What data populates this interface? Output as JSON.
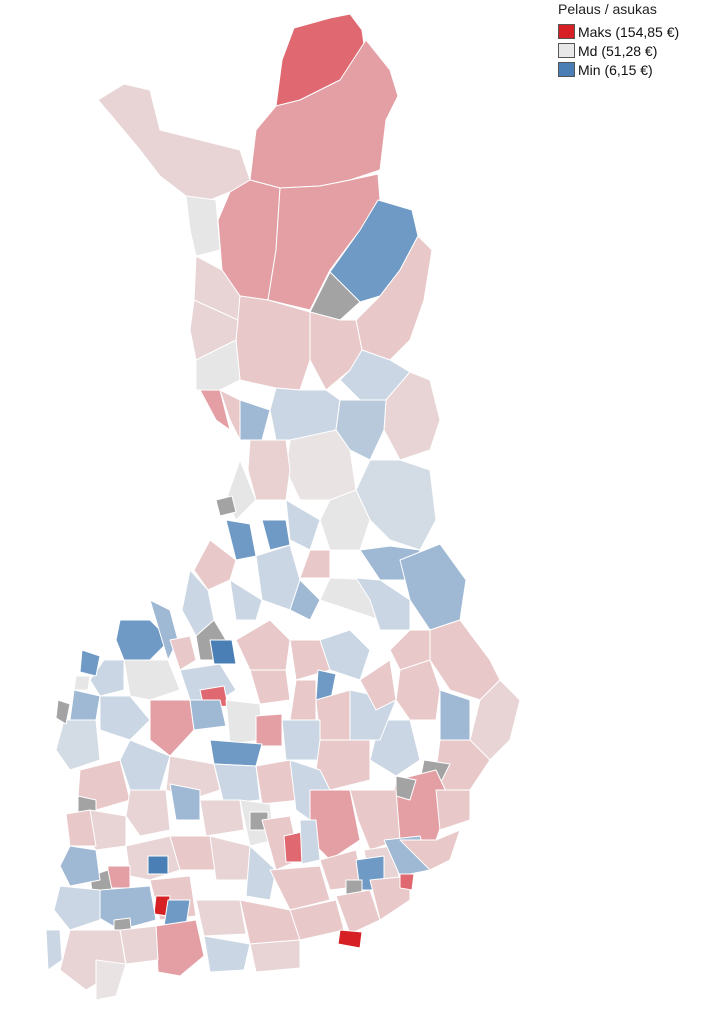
{
  "legend": {
    "title": "Pelaus / asukas",
    "items": [
      {
        "label": "Maks (154,85 €)",
        "color": "#d62024"
      },
      {
        "label": "Md (51,28 €)",
        "color": "#e8e8e8"
      },
      {
        "label": "Min (6,15 €)",
        "color": "#4a7fb5"
      }
    ]
  },
  "colors": {
    "no_data": "#a3a3a3",
    "red_strong": "#e06870",
    "red_mid": "#e49fa4",
    "red_light": "#e9c8c9",
    "neutral": "#e6e6e6",
    "blue_light": "#cad6e3",
    "blue_mid": "#9fb8d4",
    "blue_strong": "#6f9ac6"
  }
}
